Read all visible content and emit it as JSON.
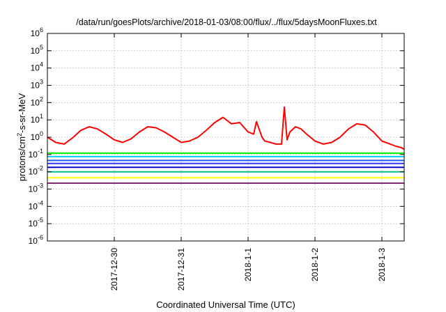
{
  "chart_data": {
    "type": "line",
    "title": "/data/run/goesPlots/archive/2018-01-03/08:00/flux/../flux/5daysMoonFluxes.txt",
    "xlabel": "Coordinated Universal Time (UTC)",
    "ylabel": {
      "prefix": "protons/cm",
      "sup": "2",
      "suffix": "-s-sr-MeV"
    },
    "yscale": "log",
    "ylim": [
      1e-06,
      1000000.0
    ],
    "xlim": [
      "2017-12-29T00:00",
      "2018-01-03T08:00"
    ],
    "grid": true,
    "legend": "none",
    "y_ticks": [
      {
        "value": 1e-06,
        "base": "10",
        "exp": "-6"
      },
      {
        "value": 1e-05,
        "base": "10",
        "exp": "-5"
      },
      {
        "value": 0.0001,
        "base": "10",
        "exp": "-4"
      },
      {
        "value": 0.001,
        "base": "10",
        "exp": "-3"
      },
      {
        "value": 0.01,
        "base": "10",
        "exp": "-2"
      },
      {
        "value": 0.1,
        "base": "10",
        "exp": "-1"
      },
      {
        "value": 1,
        "base": "10",
        "exp": "0"
      },
      {
        "value": 10,
        "base": "10",
        "exp": "1"
      },
      {
        "value": 100,
        "base": "10",
        "exp": "2"
      },
      {
        "value": 1000,
        "base": "10",
        "exp": "3"
      },
      {
        "value": 10000,
        "base": "10",
        "exp": "4"
      },
      {
        "value": 100000,
        "base": "10",
        "exp": "5"
      },
      {
        "value": 1000000,
        "base": "10",
        "exp": "6"
      }
    ],
    "x_ticks": [
      {
        "value": "2017-12-30T00:00",
        "label": "2017-12-30"
      },
      {
        "value": "2017-12-31T00:00",
        "label": "2017-12-31"
      },
      {
        "value": "2018-01-01T00:00",
        "label": "2018-1-1"
      },
      {
        "value": "2018-01-02T00:00",
        "label": "2018-1-2"
      },
      {
        "value": "2018-01-03T00:00",
        "label": "2018-1-3"
      }
    ],
    "series": [
      {
        "color": "#ff0000",
        "x": [
          "2017-12-29T00:00",
          "2017-12-29T03:00",
          "2017-12-29T06:00",
          "2017-12-29T09:00",
          "2017-12-29T12:00",
          "2017-12-29T15:00",
          "2017-12-29T18:00",
          "2017-12-29T21:00",
          "2017-12-30T00:00",
          "2017-12-30T03:00",
          "2017-12-30T06:00",
          "2017-12-30T09:00",
          "2017-12-30T12:00",
          "2017-12-30T15:00",
          "2017-12-30T18:00",
          "2017-12-30T21:00",
          "2017-12-31T00:00",
          "2017-12-31T03:00",
          "2017-12-31T06:00",
          "2017-12-31T09:00",
          "2017-12-31T12:00",
          "2017-12-31T15:00",
          "2017-12-31T18:00",
          "2017-12-31T21:00",
          "2018-01-01T00:00",
          "2018-01-01T02:00",
          "2018-01-01T03:00",
          "2018-01-01T05:00",
          "2018-01-01T06:00",
          "2018-01-01T08:00",
          "2018-01-01T10:00",
          "2018-01-01T12:00",
          "2018-01-01T13:00",
          "2018-01-01T14:00",
          "2018-01-01T15:00",
          "2018-01-01T17:00",
          "2018-01-01T19:00",
          "2018-01-01T21:00",
          "2018-01-02T00:00",
          "2018-01-02T03:00",
          "2018-01-02T06:00",
          "2018-01-02T09:00",
          "2018-01-02T12:00",
          "2018-01-02T15:00",
          "2018-01-02T18:00",
          "2018-01-02T21:00",
          "2018-01-03T00:00",
          "2018-01-03T03:00",
          "2018-01-03T05:00",
          "2018-01-03T07:00",
          "2018-01-03T08:00"
        ],
        "values": [
          1.0,
          0.5,
          0.4,
          0.9,
          2.5,
          4.0,
          3.0,
          1.5,
          0.7,
          0.5,
          0.8,
          2.0,
          4.0,
          3.5,
          2.0,
          1.0,
          0.5,
          0.6,
          1.0,
          2.5,
          7.0,
          14.0,
          6.0,
          7.0,
          2.0,
          1.5,
          8.0,
          1.0,
          0.6,
          0.5,
          0.4,
          0.4,
          55.0,
          0.7,
          2.0,
          4.0,
          3.0,
          1.5,
          0.6,
          0.4,
          0.5,
          1.0,
          3.0,
          6.0,
          5.0,
          2.0,
          0.6,
          0.4,
          0.3,
          0.25,
          0.2
        ]
      },
      {
        "color": "#00ee00",
        "x": [
          "2017-12-29T00:00",
          "2018-01-03T08:00"
        ],
        "values": [
          0.12,
          0.12
        ]
      },
      {
        "color": "#00ccff",
        "x": [
          "2017-12-29T00:00",
          "2018-01-03T08:00"
        ],
        "values": [
          0.075,
          0.075
        ]
      },
      {
        "color": "#1e5bff",
        "x": [
          "2017-12-29T00:00",
          "2018-01-03T08:00"
        ],
        "values": [
          0.045,
          0.045
        ]
      },
      {
        "color": "#3333ff",
        "x": [
          "2017-12-29T00:00",
          "2018-01-03T08:00"
        ],
        "values": [
          0.03,
          0.03
        ]
      },
      {
        "color": "#0000cc",
        "x": [
          "2017-12-29T00:00",
          "2018-01-03T08:00"
        ],
        "values": [
          0.018,
          0.018
        ]
      },
      {
        "color": "#00bb88",
        "x": [
          "2017-12-29T00:00",
          "2018-01-03T08:00"
        ],
        "values": [
          0.01,
          0.01
        ]
      },
      {
        "color": "#ffff00",
        "x": [
          "2017-12-29T00:00",
          "2018-01-03T08:00"
        ],
        "values": [
          0.0045,
          0.0045
        ]
      },
      {
        "color": "#7d2a6f",
        "x": [
          "2017-12-29T00:00",
          "2018-01-03T08:00"
        ],
        "values": [
          0.0022,
          0.0022
        ]
      }
    ]
  }
}
